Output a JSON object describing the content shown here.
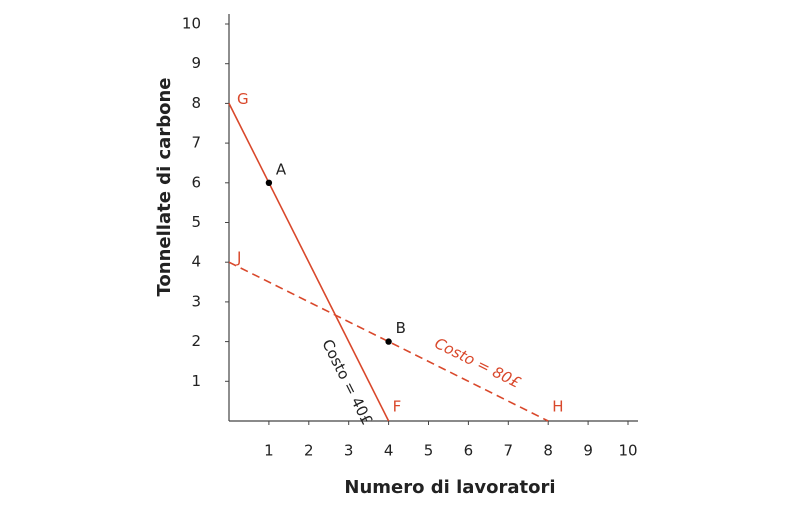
{
  "chart_data": {
    "type": "line",
    "xlabel": "Numero di lavoratori",
    "ylabel": "Tonnellate di carbone",
    "xlim": [
      0,
      10
    ],
    "ylim": [
      0,
      10
    ],
    "xticks": [
      1,
      2,
      3,
      4,
      5,
      6,
      7,
      8,
      9,
      10
    ],
    "yticks": [
      1,
      2,
      3,
      4,
      5,
      6,
      7,
      8,
      9,
      10
    ],
    "series": [
      {
        "name": "Costo = 40£",
        "color": "#d9482b",
        "dashed": false,
        "x": [
          0,
          4
        ],
        "values": [
          8,
          0
        ],
        "point_labels": [
          "G",
          "F"
        ]
      },
      {
        "name": "Costo = 80£",
        "color": "#d9482b",
        "dashed": true,
        "x": [
          0,
          8
        ],
        "values": [
          4,
          0
        ],
        "point_labels": [
          "J",
          "H"
        ]
      }
    ],
    "points": [
      {
        "label": "A",
        "x": 1,
        "y": 6
      },
      {
        "label": "B",
        "x": 4,
        "y": 2
      }
    ],
    "point_color": "#000000"
  }
}
